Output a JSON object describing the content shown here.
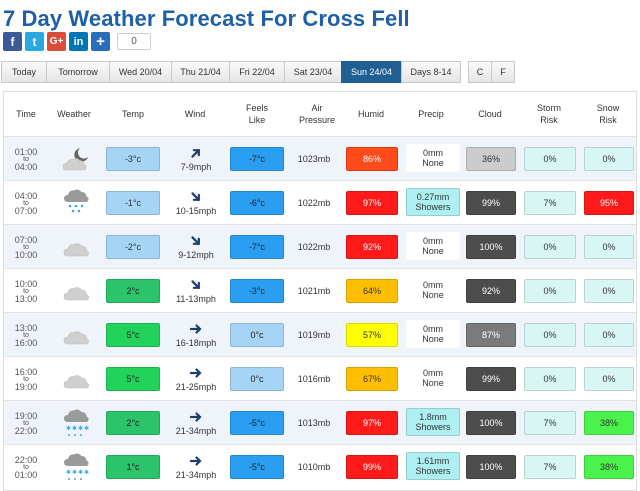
{
  "page": {
    "title": "7 Day Weather Forecast For Cross Fell"
  },
  "social": {
    "buttons": [
      {
        "name": "facebook-icon",
        "glyph": "f"
      },
      {
        "name": "twitter-icon",
        "glyph": "t"
      },
      {
        "name": "google-plus-icon",
        "glyph": "G+"
      },
      {
        "name": "linkedin-icon",
        "glyph": "in"
      },
      {
        "name": "share-plus-icon",
        "glyph": "+"
      }
    ],
    "count": "0"
  },
  "tabs": [
    {
      "label": "Today"
    },
    {
      "label": "Tomorrow"
    },
    {
      "label": "Wed 20/04"
    },
    {
      "label": "Thu 21/04"
    },
    {
      "label": "Fri 22/04"
    },
    {
      "label": "Sat 23/04"
    },
    {
      "label": "Sun 24/04"
    },
    {
      "label": "Days 8-14"
    },
    {
      "label": "C"
    },
    {
      "label": "F"
    }
  ],
  "active_tab": "Sun 24/04",
  "headers": {
    "time": "Time",
    "weather": "Weather",
    "temp": "Temp",
    "wind": "Wind",
    "feels1": "Feels",
    "feels2": "Like",
    "air1": "Air",
    "air2": "Pressure",
    "humid": "Humid",
    "precip": "Precip",
    "cloud": "Cloud",
    "storm1": "Storm",
    "storm2": "Risk",
    "snow1": "Snow",
    "snow2": "Risk"
  },
  "rows": [
    {
      "from": "01:00",
      "to": "to",
      "until": "04:00",
      "weather": "partly-cloudy-night-icon",
      "temp": "-3°c",
      "wind": "7-9mph",
      "wind_dir": "ne",
      "feels": "-7°c",
      "pressure": "1023mb",
      "humid": "86%",
      "precip1": "0mm",
      "precip2": "None",
      "cloud": "36%",
      "storm": "0%",
      "snow": "0%"
    },
    {
      "from": "04:00",
      "to": "to",
      "until": "07:00",
      "weather": "snow-cloud-icon",
      "temp": "-1°c",
      "wind": "10-15mph",
      "wind_dir": "se",
      "feels": "-6°c",
      "pressure": "1022mb",
      "humid": "97%",
      "precip1": "0.27mm",
      "precip2": "Showers",
      "cloud": "99%",
      "storm": "7%",
      "snow": "95%"
    },
    {
      "from": "07:00",
      "to": "to",
      "until": "10:00",
      "weather": "cloud-icon",
      "temp": "-2°c",
      "wind": "9-12mph",
      "wind_dir": "se",
      "feels": "-7°c",
      "pressure": "1022mb",
      "humid": "92%",
      "precip1": "0mm",
      "precip2": "None",
      "cloud": "100%",
      "storm": "0%",
      "snow": "0%"
    },
    {
      "from": "10:00",
      "to": "to",
      "until": "13:00",
      "weather": "cloud-icon",
      "temp": "2°c",
      "wind": "11-13mph",
      "wind_dir": "se",
      "feels": "-3°c",
      "pressure": "1021mb",
      "humid": "64%",
      "precip1": "0mm",
      "precip2": "None",
      "cloud": "92%",
      "storm": "0%",
      "snow": "0%"
    },
    {
      "from": "13:00",
      "to": "to",
      "until": "16:00",
      "weather": "cloud-icon",
      "temp": "5°c",
      "wind": "16-18mph",
      "wind_dir": "e",
      "feels": "0°c",
      "pressure": "1019mb",
      "humid": "57%",
      "precip1": "0mm",
      "precip2": "None",
      "cloud": "87%",
      "storm": "0%",
      "snow": "0%"
    },
    {
      "from": "16:00",
      "to": "to",
      "until": "19:00",
      "weather": "cloud-icon",
      "temp": "5°c",
      "wind": "21-25mph",
      "wind_dir": "e",
      "feels": "0°c",
      "pressure": "1016mb",
      "humid": "67%",
      "precip1": "0mm",
      "precip2": "None",
      "cloud": "99%",
      "storm": "0%",
      "snow": "0%"
    },
    {
      "from": "19:00",
      "to": "to",
      "until": "22:00",
      "weather": "sleet-cloud-icon",
      "temp": "2°c",
      "wind": "21-34mph",
      "wind_dir": "e",
      "feels": "-5°c",
      "pressure": "1013mb",
      "humid": "97%",
      "precip1": "1.8mm",
      "precip2": "Showers",
      "cloud": "100%",
      "storm": "7%",
      "snow": "38%"
    },
    {
      "from": "22:00",
      "to": "to",
      "until": "01:00",
      "weather": "sleet-cloud-icon",
      "temp": "1°c",
      "wind": "21-34mph",
      "wind_dir": "e",
      "feels": "-5°c",
      "pressure": "1010mb",
      "humid": "99%",
      "precip1": "1.61mm",
      "precip2": "Showers",
      "cloud": "100%",
      "storm": "7%",
      "snow": "38%"
    }
  ],
  "colors": {
    "title": "#1e5fa8",
    "temp": {
      "-3°c": "#a6d4f7",
      "-1°c": "#a6d4f7",
      "-2°c": "#a6d4f7",
      "2°c": "#2cc46b",
      "5°c": "#23d25a",
      "1°c": "#2cc46b"
    },
    "feels": "#2a9ef0",
    "feels_zero": "#a6d4f7",
    "humid": {
      "86%": "#ff4a1a",
      "97%": "#ff1a1a",
      "92%": "#ff1a1a",
      "64%": "#ffbf00",
      "57%": "#ffff00",
      "67%": "#ffbf00",
      "99%": "#ff1a1a"
    },
    "precip_showers": "#aef0f2",
    "cloud": {
      "36%": "#cccccc",
      "99%": "#4d4d4d",
      "100%": "#4d4d4d",
      "92%": "#4d4d4d",
      "87%": "#7a7a7a"
    },
    "storm": "#d8f7f4",
    "snow": {
      "0%": "#d8f7f4",
      "95%": "#ff1a1a",
      "38%": "#4cf24c"
    }
  }
}
